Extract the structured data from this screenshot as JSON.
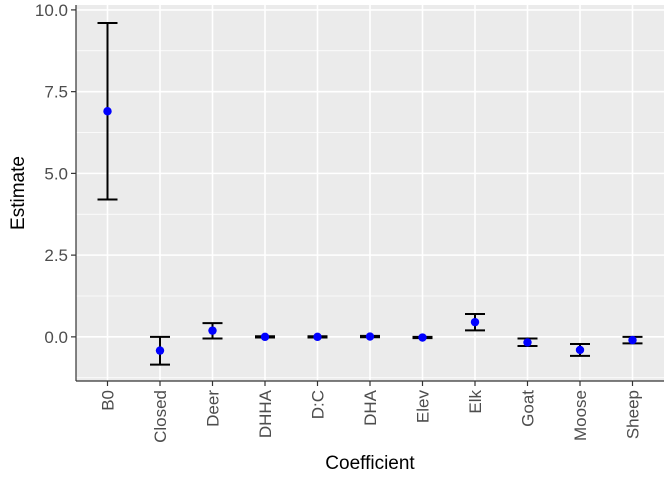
{
  "chart_data": {
    "type": "scatter",
    "title": "",
    "xlabel": "Coefficient",
    "ylabel": "Estimate",
    "categories": [
      "B0",
      "Closed",
      "Deer",
      "DHHA",
      "D:C",
      "DHA",
      "Elev",
      "Elk",
      "Goat",
      "Moose",
      "Sheep"
    ],
    "estimate": [
      6.9,
      -0.42,
      0.19,
      0.0,
      0.0,
      0.01,
      -0.02,
      0.45,
      -0.17,
      -0.4,
      -0.1
    ],
    "lower": [
      4.2,
      -0.85,
      -0.05,
      -0.02,
      -0.02,
      -0.01,
      -0.04,
      0.2,
      -0.28,
      -0.58,
      -0.2
    ],
    "upper": [
      9.6,
      0.0,
      0.42,
      0.02,
      0.02,
      0.03,
      0.0,
      0.7,
      -0.05,
      -0.22,
      0.0
    ],
    "ylim": [
      -1.35,
      10.15
    ],
    "yticks": [
      0.0,
      2.5,
      5.0,
      7.5,
      10.0
    ],
    "ytick_labels": [
      "0.0",
      "2.5",
      "5.0",
      "7.5",
      "10.0"
    ],
    "grid": true,
    "point_color": "#0000ff",
    "errorbar_color": "#000000",
    "panel_background": "#ebebeb",
    "grid_color": "#ffffff"
  }
}
